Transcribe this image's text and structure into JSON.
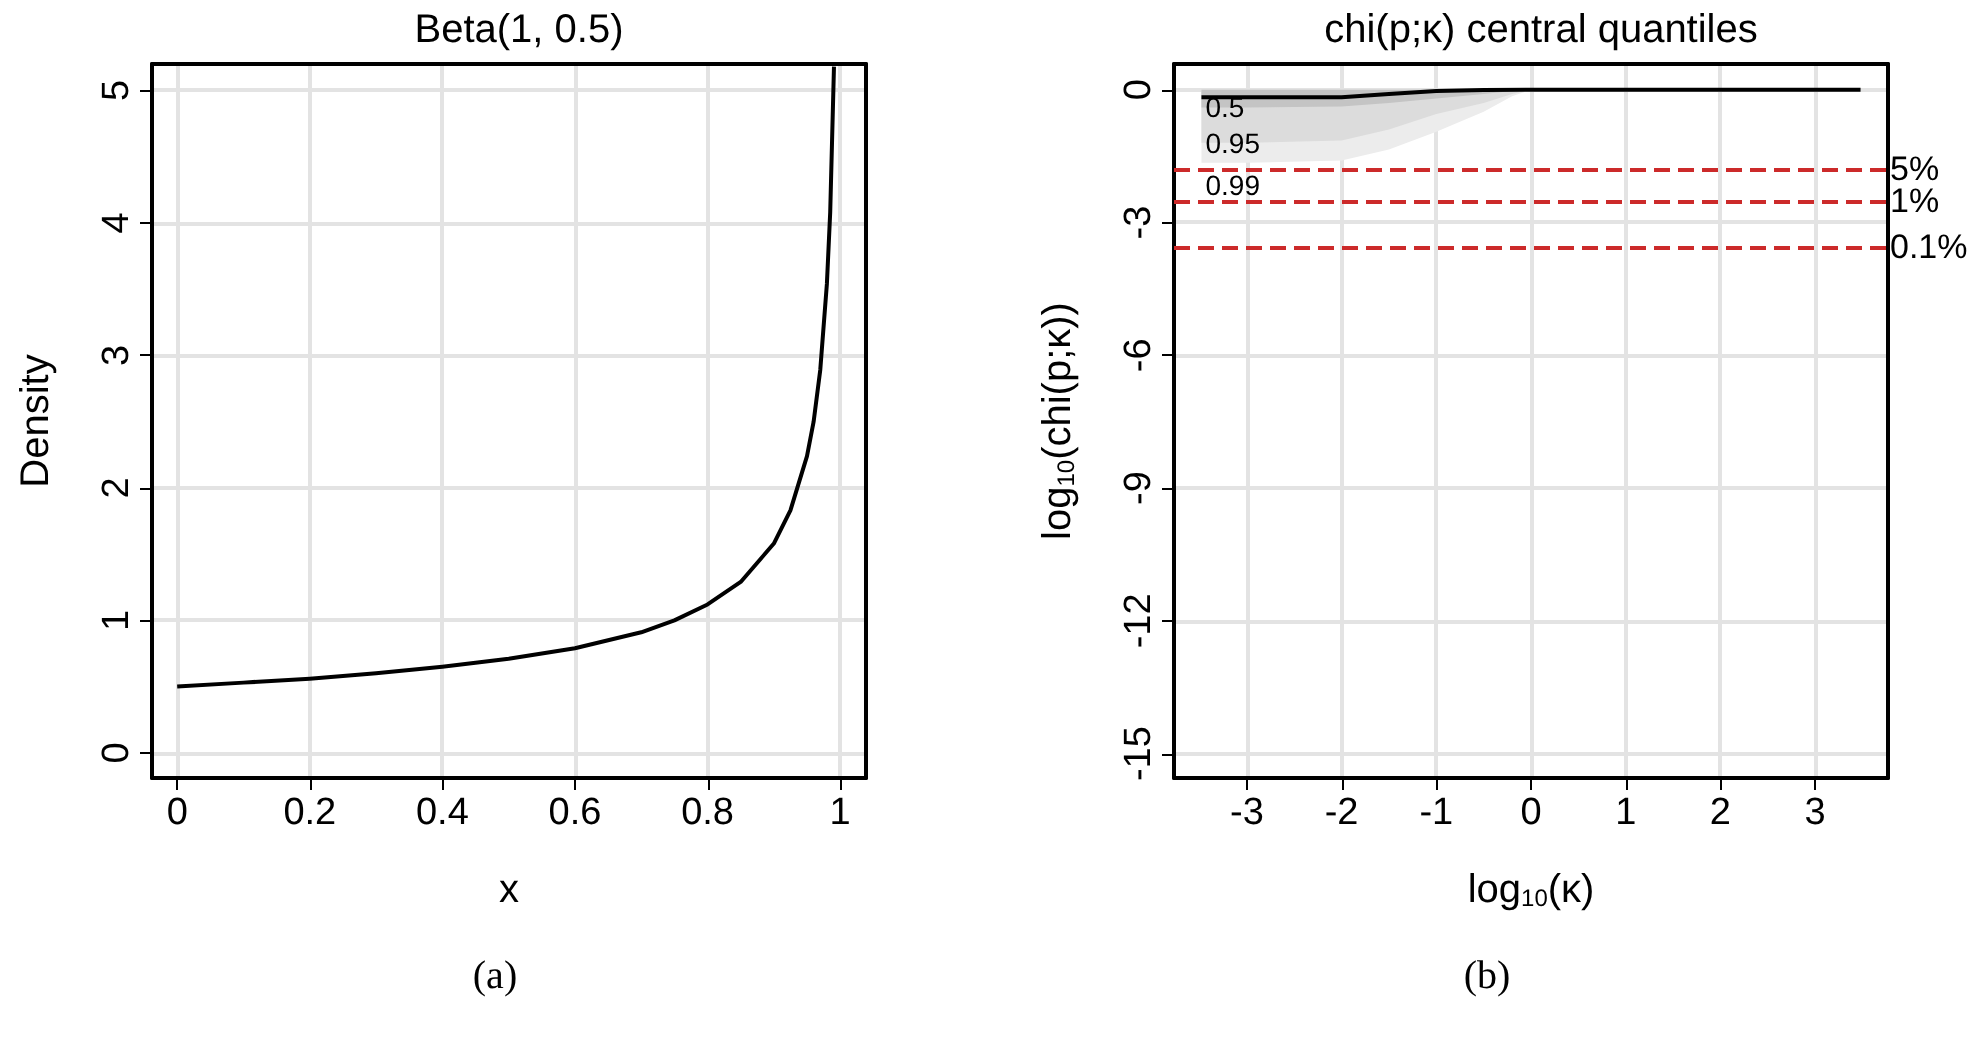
{
  "chart_data": [
    {
      "type": "line",
      "title": "Beta(1, 0.5)",
      "xlabel": "x",
      "ylabel": "Density",
      "xlim": [
        -0.038,
        1.039
      ],
      "ylim": [
        -0.19,
        5.2
      ],
      "xticks": [
        0,
        0.2,
        0.4,
        0.6,
        0.8,
        1
      ],
      "yticks": [
        0,
        1,
        2,
        3,
        4,
        5
      ],
      "grid": true,
      "annotations": [
        "(a)"
      ],
      "series": [
        {
          "color": "#000000",
          "x": [
            0,
            0.1,
            0.2,
            0.3,
            0.4,
            0.5,
            0.6,
            0.7,
            0.75,
            0.8,
            0.85,
            0.9,
            0.925,
            0.95,
            0.96,
            0.97,
            0.98,
            0.985,
            0.9907
          ],
          "values": [
            0.5,
            0.53,
            0.56,
            0.6,
            0.65,
            0.71,
            0.79,
            0.91,
            1.0,
            1.12,
            1.29,
            1.58,
            1.83,
            2.24,
            2.5,
            2.89,
            3.54,
            4.08,
            5.18
          ]
        }
      ]
    },
    {
      "type": "line",
      "title": "chi(p;κ) central quantiles",
      "xlabel": "log$_{10}$(κ)",
      "ylabel": "log$_{10}$(chi(p;κ))",
      "xlim": [
        -3.77,
        3.77
      ],
      "ylim": [
        -15.55,
        0.58
      ],
      "xticks": [
        -3,
        -2,
        -1,
        0,
        1,
        2,
        3
      ],
      "yticks": [
        -15,
        -12,
        -9,
        -6,
        -3,
        0
      ],
      "grid": true,
      "annotations": [
        "(b)",
        "5%",
        "1%",
        "0.1%"
      ],
      "series": [
        {
          "name": "0.99",
          "type": "area",
          "color": "#ececec",
          "x": [
            -3.48,
            -3,
            -2,
            -1.5,
            -1,
            -0.5,
            -0.2,
            0
          ],
          "values": [
            -1.65,
            -1.65,
            -1.6,
            -1.35,
            -0.95,
            -0.5,
            -0.15,
            0
          ]
        },
        {
          "name": "0.95",
          "type": "area",
          "color": "#dcdcdc",
          "x": [
            -3.48,
            -3,
            -2,
            -1.5,
            -1,
            -0.5,
            -0.2,
            0
          ],
          "values": [
            -1.2,
            -1.2,
            -1.15,
            -0.9,
            -0.55,
            -0.3,
            -0.1,
            0
          ]
        },
        {
          "name": "0.5",
          "type": "area",
          "color": "#c4c4c4",
          "x": [
            -3.48,
            -3,
            -2,
            -1.5,
            -1,
            -0.5,
            -0.2,
            0
          ],
          "values": [
            -0.4,
            -0.4,
            -0.38,
            -0.3,
            -0.2,
            -0.1,
            -0.03,
            0
          ]
        },
        {
          "color": "#000000",
          "x": [
            -3.48,
            -2,
            -1.5,
            -1,
            -0.5,
            0,
            3.48
          ],
          "values": [
            -0.17,
            -0.17,
            -0.1,
            -0.03,
            -0.01,
            0,
            0
          ]
        }
      ],
      "ref_lines": [
        {
          "axis": "y",
          "value": -1.8,
          "color": "#cc2a2a",
          "line_style": "dashed"
        },
        {
          "axis": "y",
          "value": -2.51,
          "color": "#cc2a2a",
          "line_style": "dashed"
        },
        {
          "axis": "y",
          "value": -3.56,
          "color": "#cc2a2a",
          "line_style": "dashed"
        }
      ]
    }
  ]
}
